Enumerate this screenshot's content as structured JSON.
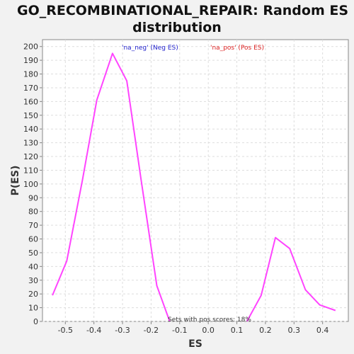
{
  "chart_data": {
    "type": "line",
    "title_line1": "GO_RECOMBINATIONAL_REPAIR: Random ES",
    "title_line2": "distribution",
    "xlabel": "ES",
    "ylabel": "P(ES)",
    "xlim": [
      -0.58,
      0.49
    ],
    "ylim": [
      0,
      205
    ],
    "x_ticks": [
      -0.5,
      -0.4,
      -0.3,
      -0.2,
      -0.1,
      0.0,
      0.1,
      0.2,
      0.3,
      0.4
    ],
    "x_tick_labels": [
      "-0.5",
      "-0.4",
      "-0.3",
      "-0.2",
      "-0.1",
      "0.0",
      "0.1",
      "0.2",
      "0.3",
      "0.4"
    ],
    "y_ticks": [
      0,
      10,
      20,
      30,
      40,
      50,
      60,
      70,
      80,
      90,
      100,
      110,
      120,
      130,
      140,
      150,
      160,
      170,
      180,
      190,
      200
    ],
    "grid": true,
    "series": [
      {
        "name": "'na_neg' (Neg ES)",
        "color": "#ff44ff",
        "x": [
          -0.545,
          -0.495,
          -0.44,
          -0.39,
          -0.335,
          -0.285,
          -0.235,
          -0.18,
          -0.135
        ],
        "y": [
          19,
          44,
          103,
          161,
          195,
          175,
          103,
          26,
          0
        ]
      },
      {
        "name": "'na_pos' (Pos ES)",
        "color": "#ff44ff",
        "x": [
          0.135,
          0.185,
          0.235,
          0.285,
          0.34,
          0.39,
          0.445
        ],
        "y": [
          0,
          19,
          61,
          53,
          23,
          12,
          8
        ]
      }
    ],
    "legend": [
      {
        "label": "'na_neg' (Neg ES)",
        "color": "#2222cc"
      },
      {
        "label": "'na_pos' (Pos ES)",
        "color": "#dd2222"
      }
    ],
    "annotation": "Sets with pos scores: 18%"
  }
}
